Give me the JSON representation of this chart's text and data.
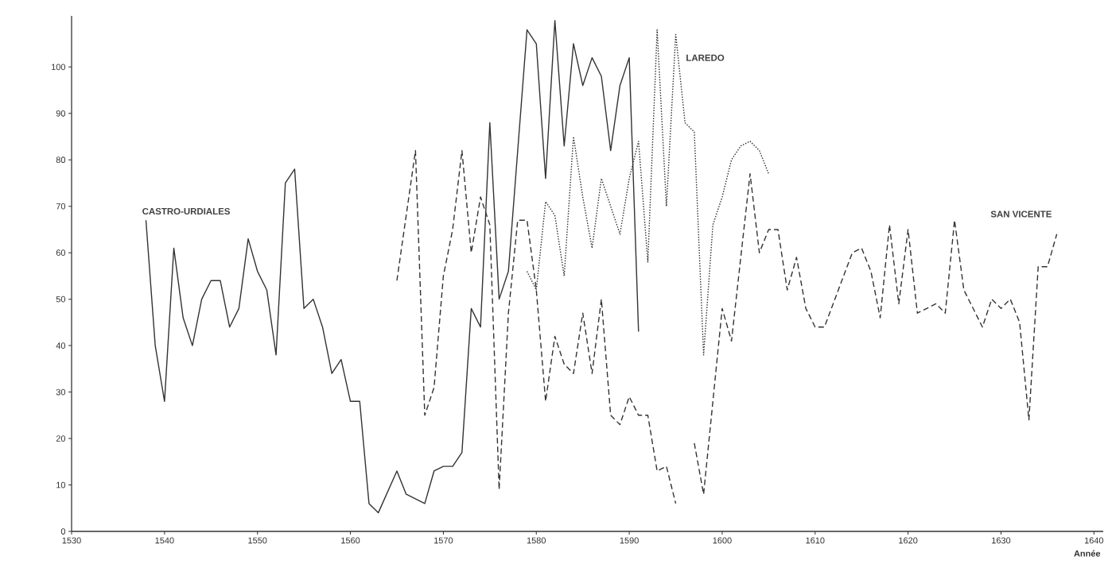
{
  "chart_data": {
    "type": "line",
    "xlabel": "Année",
    "xlim": [
      1530,
      1641
    ],
    "ylim": [
      0,
      111
    ],
    "xticks": [
      1530,
      1540,
      1550,
      1560,
      1570,
      1580,
      1590,
      1600,
      1610,
      1620,
      1630,
      1640
    ],
    "yticks": [
      0,
      10,
      20,
      30,
      40,
      50,
      60,
      70,
      80,
      90,
      100
    ],
    "series": [
      {
        "name": "CASTRO-URDIALES",
        "color": "#333333",
        "line_style": "solid",
        "x": [
          1538,
          1539,
          1540,
          1541,
          1542,
          1543,
          1544,
          1545,
          1546,
          1547,
          1548,
          1549,
          1550,
          1551,
          1552,
          1553,
          1554,
          1555,
          1556,
          1557,
          1558,
          1559,
          1560,
          1561,
          1562,
          1563,
          1565,
          1566,
          1568,
          1569,
          1570,
          1571,
          1572,
          1573,
          1574,
          1575,
          1576,
          1577,
          1579,
          1580,
          1581,
          1582,
          1583,
          1584,
          1585,
          1586,
          1587,
          1588,
          1589,
          1590,
          1591
        ],
        "values": [
          67,
          40,
          28,
          61,
          46,
          40,
          50,
          54,
          54,
          44,
          48,
          63,
          56,
          52,
          38,
          75,
          78,
          48,
          50,
          44,
          34,
          37,
          28,
          28,
          6,
          4,
          13,
          8,
          6,
          13,
          14,
          14,
          17,
          48,
          44,
          88,
          50,
          56,
          108,
          105,
          76,
          110,
          83,
          105,
          96,
          102,
          98,
          82,
          96,
          102,
          43
        ]
      },
      {
        "name": "LAREDO",
        "color": "#333333",
        "line_style": "dotted",
        "x": [
          1579,
          1580,
          1581,
          1582,
          1583,
          1584,
          1585,
          1586,
          1587,
          1588,
          1589,
          1590,
          1591,
          1592,
          1593,
          1594,
          1595,
          1596,
          1597,
          1598,
          1599,
          1600,
          1601,
          1602,
          1603,
          1604,
          1605
        ],
        "values": [
          56,
          52,
          71,
          68,
          55,
          85,
          72,
          61,
          76,
          70,
          64,
          76,
          84,
          58,
          108,
          70,
          107,
          88,
          86,
          38,
          66,
          72,
          80,
          83,
          84,
          82,
          77
        ]
      },
      {
        "name": "SAN VICENTE",
        "color": "#333333",
        "line_style": "dashed",
        "x": [
          1565,
          1567,
          1568,
          1569,
          1570,
          1571,
          1572,
          1573,
          1574,
          1575,
          1576,
          1577,
          1578,
          1579,
          1580,
          1581,
          1582,
          1583,
          1584,
          1585,
          1586,
          1587,
          1588,
          1589,
          1590,
          1591,
          1592,
          1593,
          1594,
          1595,
          1596,
          1597,
          1598,
          1600,
          1601,
          1603,
          1604,
          1605,
          1606,
          1607,
          1608,
          1609,
          1610,
          1611,
          1614,
          1615,
          1616,
          1617,
          1618,
          1619,
          1620,
          1621,
          1623,
          1624,
          1625,
          1626,
          1628,
          1629,
          1630,
          1631,
          1632,
          1633,
          1634,
          1635,
          1636
        ],
        "values": [
          54,
          82,
          25,
          31,
          55,
          65,
          82,
          60,
          72,
          66,
          9,
          47,
          67,
          67,
          52,
          28,
          42,
          36,
          34,
          47,
          34,
          50,
          25,
          23,
          29,
          25,
          25,
          13,
          14,
          6,
          null,
          19,
          8,
          48,
          41,
          77,
          60,
          65,
          65,
          52,
          59,
          48,
          44,
          44,
          60,
          61,
          56,
          46,
          66,
          49,
          65,
          47,
          49,
          47,
          67,
          52,
          44,
          50,
          48,
          50,
          45,
          24,
          57,
          57,
          64
        ]
      }
    ]
  }
}
